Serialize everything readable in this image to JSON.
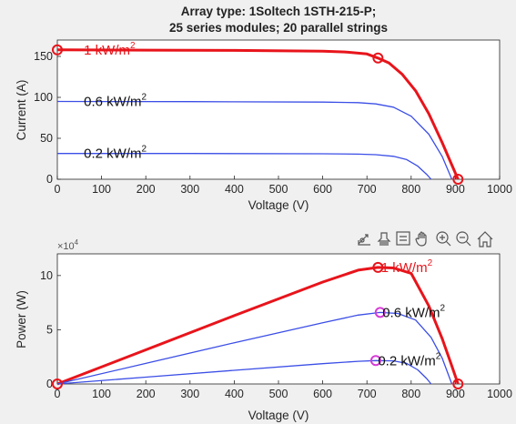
{
  "chart_data": [
    {
      "type": "line",
      "title": "Array type: 1Soltech 1STH-215-P;",
      "subtitle": "25 series modules; 20 parallel strings",
      "xlabel": "Voltage (V)",
      "ylabel": "Current (A)",
      "xlim": [
        0,
        1000
      ],
      "ylim": [
        0,
        170
      ],
      "x_ticks": [
        "0",
        "100",
        "200",
        "300",
        "400",
        "500",
        "600",
        "700",
        "800",
        "900",
        "1000"
      ],
      "y_ticks": [
        "0",
        "50",
        "100",
        "150"
      ],
      "grid": false,
      "series": [
        {
          "name": "1 kW/m",
          "sup": "2",
          "color": "#e8141b",
          "width": "thick",
          "x": [
            0,
            200,
            400,
            600,
            650,
            700,
            725,
            750,
            780,
            810,
            840,
            870,
            890,
            906
          ],
          "y": [
            158,
            157.7,
            157.3,
            156.5,
            155.5,
            153,
            148,
            142,
            128,
            108,
            80,
            45,
            20,
            0
          ]
        },
        {
          "name": "0.6 kW/m",
          "sup": "2",
          "color": "#3b4ee6",
          "width": "thin",
          "x": [
            0,
            300,
            600,
            680,
            720,
            760,
            800,
            840,
            870,
            892
          ],
          "y": [
            95,
            94.8,
            94.2,
            93.5,
            92,
            88,
            77,
            55,
            28,
            0
          ]
        },
        {
          "name": "0.2 kW/m",
          "sup": "2",
          "color": "#3b4ee6",
          "width": "thin",
          "x": [
            0,
            300,
            600,
            680,
            720,
            760,
            790,
            815,
            835,
            845
          ],
          "y": [
            31.5,
            31.4,
            31.1,
            30.7,
            30,
            28,
            24,
            16,
            6,
            0
          ]
        }
      ],
      "markers": [
        {
          "x": 0,
          "y": 158,
          "color": "#e8141b"
        },
        {
          "x": 725,
          "y": 148,
          "color": "#e8141b"
        },
        {
          "x": 906,
          "y": 0,
          "color": "#e8141b"
        }
      ],
      "annotations": [
        {
          "text": "1 kW/m",
          "sup": "2",
          "x": 60,
          "y": 158,
          "color": "#e8141b"
        },
        {
          "text": "0.6 kW/m",
          "sup": "2",
          "x": 60,
          "y": 95,
          "color": "#111111"
        },
        {
          "text": "0.2 kW/m",
          "sup": "2",
          "x": 60,
          "y": 31.5,
          "color": "#111111"
        }
      ]
    },
    {
      "type": "line",
      "xlabel": "Voltage (V)",
      "ylabel": "Power (W)",
      "exponent": "×10",
      "exponent_power": "4",
      "xlim": [
        0,
        1000
      ],
      "ylim": [
        0,
        12
      ],
      "x_ticks": [
        "0",
        "100",
        "200",
        "300",
        "400",
        "500",
        "600",
        "700",
        "800",
        "900",
        "1000"
      ],
      "y_ticks": [
        "0",
        "5",
        "10"
      ],
      "grid": false,
      "series": [
        {
          "name": "1 kW/m",
          "sup": "2",
          "color": "#e8141b",
          "width": "thick",
          "x": [
            0,
            200,
            400,
            600,
            680,
            725,
            760,
            800,
            840,
            870,
            890,
            906
          ],
          "y": [
            0,
            3.15,
            6.3,
            9.4,
            10.5,
            10.75,
            10.7,
            10.2,
            7.2,
            4.2,
            1.9,
            0
          ]
        },
        {
          "name": "0.6 kW/m",
          "sup": "2",
          "color": "#3b4ee6",
          "width": "thin",
          "x": [
            0,
            200,
            400,
            600,
            680,
            730,
            770,
            810,
            845,
            870,
            892
          ],
          "y": [
            0,
            1.9,
            3.8,
            5.65,
            6.35,
            6.6,
            6.5,
            5.9,
            4.3,
            2.4,
            0
          ]
        },
        {
          "name": "0.2 kW/m",
          "sup": "2",
          "color": "#3b4ee6",
          "width": "thin",
          "x": [
            0,
            200,
            400,
            600,
            680,
            720,
            760,
            790,
            815,
            835,
            845
          ],
          "y": [
            0,
            0.63,
            1.26,
            1.87,
            2.09,
            2.16,
            2.13,
            1.9,
            1.3,
            0.5,
            0
          ]
        }
      ],
      "markers": [
        {
          "x": 0,
          "y": 0,
          "color": "#e8141b"
        },
        {
          "x": 725,
          "y": 10.75,
          "color": "#e8141b"
        },
        {
          "x": 906,
          "y": 0,
          "color": "#e8141b"
        },
        {
          "x": 730,
          "y": 6.6,
          "color": "#d63bd6"
        },
        {
          "x": 720,
          "y": 2.16,
          "color": "#d63bd6"
        }
      ],
      "annotations": [
        {
          "text": "1 kW/m",
          "sup": "2",
          "x": 732,
          "y": 10.75,
          "color": "#e8141b"
        },
        {
          "text": "0.6 kW/m",
          "sup": "2",
          "x": 735,
          "y": 6.6,
          "color": "#111111"
        },
        {
          "text": "0.2 kW/m",
          "sup": "2",
          "x": 725,
          "y": 2.16,
          "color": "#111111"
        }
      ]
    }
  ],
  "toolbar": {
    "icons": [
      "export-icon",
      "brush-icon",
      "datatip-icon",
      "pan-icon",
      "zoom-in-icon",
      "zoom-out-icon",
      "home-icon"
    ]
  }
}
